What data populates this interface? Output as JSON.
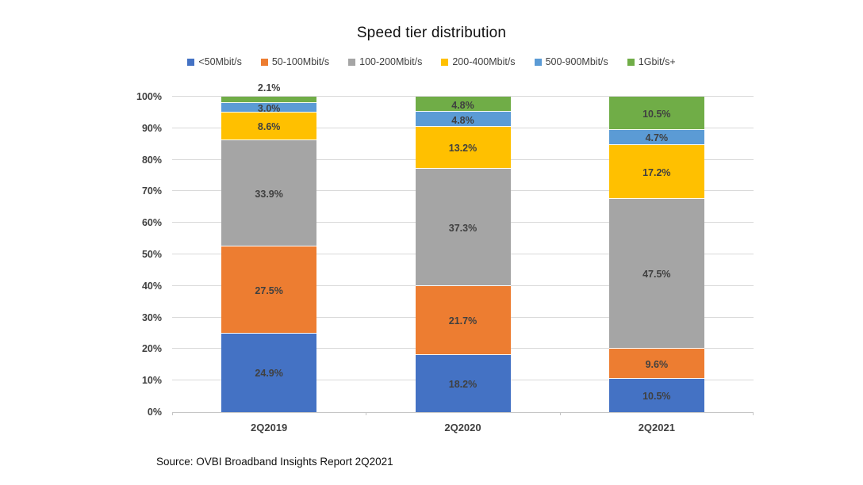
{
  "chart": {
    "title": "Speed tier distribution",
    "source": "Source: OVBI Broadband Insights Report 2Q2021"
  },
  "chart_data": {
    "type": "bar",
    "stacked": true,
    "title": "Speed tier distribution",
    "xlabel": "",
    "ylabel": "",
    "ylim": [
      0,
      100
    ],
    "ytick_step": 10,
    "ytick_suffix": "%",
    "grid": true,
    "legend_position": "top",
    "categories": [
      "2Q2019",
      "2Q2020",
      "2Q2021"
    ],
    "series": [
      {
        "name": "<50Mbit/s",
        "color": "#4472C4",
        "values": [
          24.9,
          18.2,
          10.5
        ]
      },
      {
        "name": "50-100Mbit/s",
        "color": "#ED7D31",
        "values": [
          27.5,
          21.7,
          9.6
        ]
      },
      {
        "name": "100-200Mbit/s",
        "color": "#A5A5A5",
        "values": [
          33.9,
          37.3,
          47.5
        ]
      },
      {
        "name": "200-400Mbit/s",
        "color": "#FFC000",
        "values": [
          8.6,
          13.2,
          17.2
        ]
      },
      {
        "name": "500-900Mbit/s",
        "color": "#5B9BD5",
        "values": [
          3.0,
          4.8,
          4.7
        ]
      },
      {
        "name": "1Gbit/s+",
        "color": "#70AD47",
        "values": [
          2.1,
          4.8,
          10.5
        ]
      }
    ],
    "label_format": "one_decimal_percent",
    "source": "Source: OVBI Broadband Insights Report 2Q2021"
  }
}
